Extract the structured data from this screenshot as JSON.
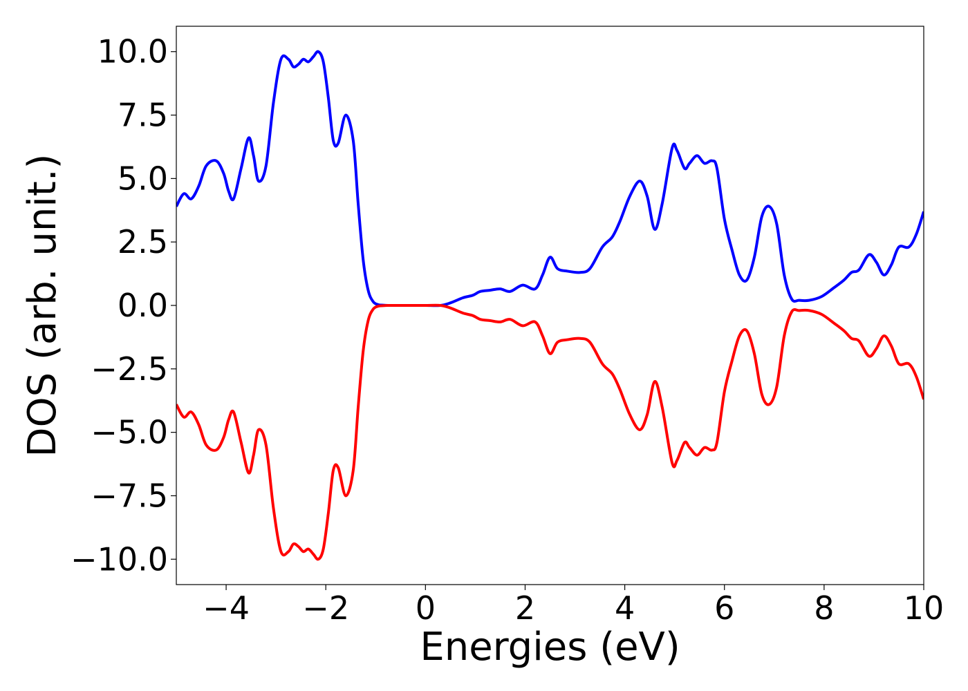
{
  "chart_data": {
    "type": "line",
    "title": "",
    "xlabel": "Energies (eV)",
    "ylabel": "DOS (arb. unit.)",
    "xlim": [
      -5,
      10
    ],
    "ylim": [
      -11,
      11
    ],
    "grid": false,
    "legend": "none",
    "xticks": [
      -4,
      -2,
      0,
      2,
      4,
      6,
      8,
      10
    ],
    "xtick_labels": [
      "−4",
      "−2",
      "0",
      "2",
      "4",
      "6",
      "8",
      "10"
    ],
    "yticks": [
      10,
      7.5,
      5,
      2.5,
      0,
      -2.5,
      -5,
      -7.5,
      -10
    ],
    "ytick_labels": [
      "10.0",
      "7.5",
      "5.0",
      "2.5",
      "0.0",
      "−2.5",
      "−5.0",
      "−7.5",
      "−10.0"
    ],
    "series": [
      {
        "color": "#0000ff",
        "x": [
          -5.0,
          -4.85,
          -4.7,
          -4.55,
          -4.4,
          -4.2,
          -4.05,
          -3.95,
          -3.85,
          -3.7,
          -3.55,
          -3.45,
          -3.35,
          -3.2,
          -3.05,
          -2.9,
          -2.75,
          -2.65,
          -2.55,
          -2.45,
          -2.35,
          -2.25,
          -2.15,
          -2.05,
          -1.95,
          -1.85,
          -1.75,
          -1.6,
          -1.45,
          -1.35,
          -1.25,
          -1.15,
          -1.05,
          -0.95,
          -0.85,
          -0.75,
          -0.6,
          -0.45,
          -0.3,
          0.0,
          0.3,
          0.5,
          0.75,
          0.95,
          1.1,
          1.3,
          1.5,
          1.7,
          1.95,
          2.2,
          2.35,
          2.5,
          2.65,
          2.85,
          3.1,
          3.3,
          3.55,
          3.75,
          3.9,
          4.1,
          4.3,
          4.45,
          4.6,
          4.75,
          4.95,
          5.05,
          5.2,
          5.3,
          5.45,
          5.6,
          5.75,
          5.85,
          6.0,
          6.15,
          6.3,
          6.45,
          6.6,
          6.75,
          6.9,
          7.05,
          7.2,
          7.35,
          7.5,
          7.7,
          7.95,
          8.2,
          8.4,
          8.55,
          8.7,
          8.9,
          9.05,
          9.2,
          9.35,
          9.5,
          9.7,
          9.85,
          10.0
        ],
        "y": [
          3.9,
          4.4,
          4.2,
          4.7,
          5.5,
          5.7,
          5.2,
          4.5,
          4.2,
          5.4,
          6.6,
          5.9,
          4.9,
          5.5,
          8.0,
          9.7,
          9.7,
          9.4,
          9.5,
          9.7,
          9.6,
          9.8,
          10.0,
          9.6,
          8.2,
          6.5,
          6.4,
          7.5,
          6.5,
          4.0,
          1.8,
          0.6,
          0.15,
          0.03,
          0.01,
          0.0,
          0.0,
          0.0,
          0.0,
          0.0,
          0.0,
          0.1,
          0.3,
          0.4,
          0.55,
          0.6,
          0.65,
          0.55,
          0.8,
          0.65,
          1.2,
          1.9,
          1.45,
          1.35,
          1.3,
          1.45,
          2.3,
          2.7,
          3.3,
          4.3,
          4.9,
          4.3,
          3.0,
          4.0,
          6.2,
          6.1,
          5.4,
          5.6,
          5.9,
          5.6,
          5.7,
          5.4,
          3.4,
          2.2,
          1.2,
          1.0,
          1.9,
          3.5,
          3.9,
          3.2,
          1.2,
          0.25,
          0.2,
          0.2,
          0.35,
          0.7,
          1.0,
          1.3,
          1.4,
          2.0,
          1.7,
          1.2,
          1.6,
          2.3,
          2.3,
          2.8,
          3.7
        ]
      },
      {
        "color": "#ff0000",
        "x": [
          -5.0,
          -4.85,
          -4.7,
          -4.55,
          -4.4,
          -4.2,
          -4.05,
          -3.95,
          -3.85,
          -3.7,
          -3.55,
          -3.45,
          -3.35,
          -3.2,
          -3.05,
          -2.9,
          -2.75,
          -2.65,
          -2.55,
          -2.45,
          -2.35,
          -2.25,
          -2.15,
          -2.05,
          -1.95,
          -1.85,
          -1.75,
          -1.6,
          -1.45,
          -1.35,
          -1.25,
          -1.15,
          -1.05,
          -0.95,
          -0.85,
          -0.75,
          -0.6,
          -0.45,
          -0.3,
          0.0,
          0.3,
          0.5,
          0.75,
          0.95,
          1.1,
          1.3,
          1.5,
          1.7,
          1.95,
          2.2,
          2.35,
          2.5,
          2.65,
          2.85,
          3.1,
          3.3,
          3.55,
          3.75,
          3.9,
          4.1,
          4.3,
          4.45,
          4.6,
          4.75,
          4.95,
          5.05,
          5.2,
          5.3,
          5.45,
          5.6,
          5.75,
          5.85,
          6.0,
          6.15,
          6.3,
          6.45,
          6.6,
          6.75,
          6.9,
          7.05,
          7.2,
          7.35,
          7.5,
          7.7,
          7.95,
          8.2,
          8.4,
          8.55,
          8.7,
          8.9,
          9.05,
          9.2,
          9.35,
          9.5,
          9.7,
          9.85,
          10.0
        ],
        "y": [
          -3.9,
          -4.4,
          -4.2,
          -4.7,
          -5.5,
          -5.7,
          -5.2,
          -4.5,
          -4.2,
          -5.4,
          -6.6,
          -5.9,
          -4.9,
          -5.5,
          -8.0,
          -9.7,
          -9.7,
          -9.4,
          -9.5,
          -9.7,
          -9.6,
          -9.8,
          -10.0,
          -9.6,
          -8.2,
          -6.5,
          -6.4,
          -7.5,
          -6.5,
          -4.0,
          -1.8,
          -0.6,
          -0.15,
          -0.03,
          -0.01,
          0.0,
          0.0,
          0.0,
          0.0,
          0.0,
          0.0,
          -0.1,
          -0.3,
          -0.4,
          -0.55,
          -0.6,
          -0.65,
          -0.55,
          -0.8,
          -0.65,
          -1.2,
          -1.9,
          -1.45,
          -1.35,
          -1.3,
          -1.45,
          -2.3,
          -2.7,
          -3.3,
          -4.3,
          -4.9,
          -4.3,
          -3.0,
          -4.0,
          -6.2,
          -6.1,
          -5.4,
          -5.6,
          -5.9,
          -5.6,
          -5.7,
          -5.4,
          -3.4,
          -2.2,
          -1.2,
          -1.0,
          -1.9,
          -3.5,
          -3.9,
          -3.2,
          -1.2,
          -0.25,
          -0.2,
          -0.2,
          -0.35,
          -0.7,
          -1.0,
          -1.3,
          -1.4,
          -2.0,
          -1.7,
          -1.2,
          -1.6,
          -2.3,
          -2.3,
          -2.8,
          -3.7
        ]
      }
    ]
  }
}
